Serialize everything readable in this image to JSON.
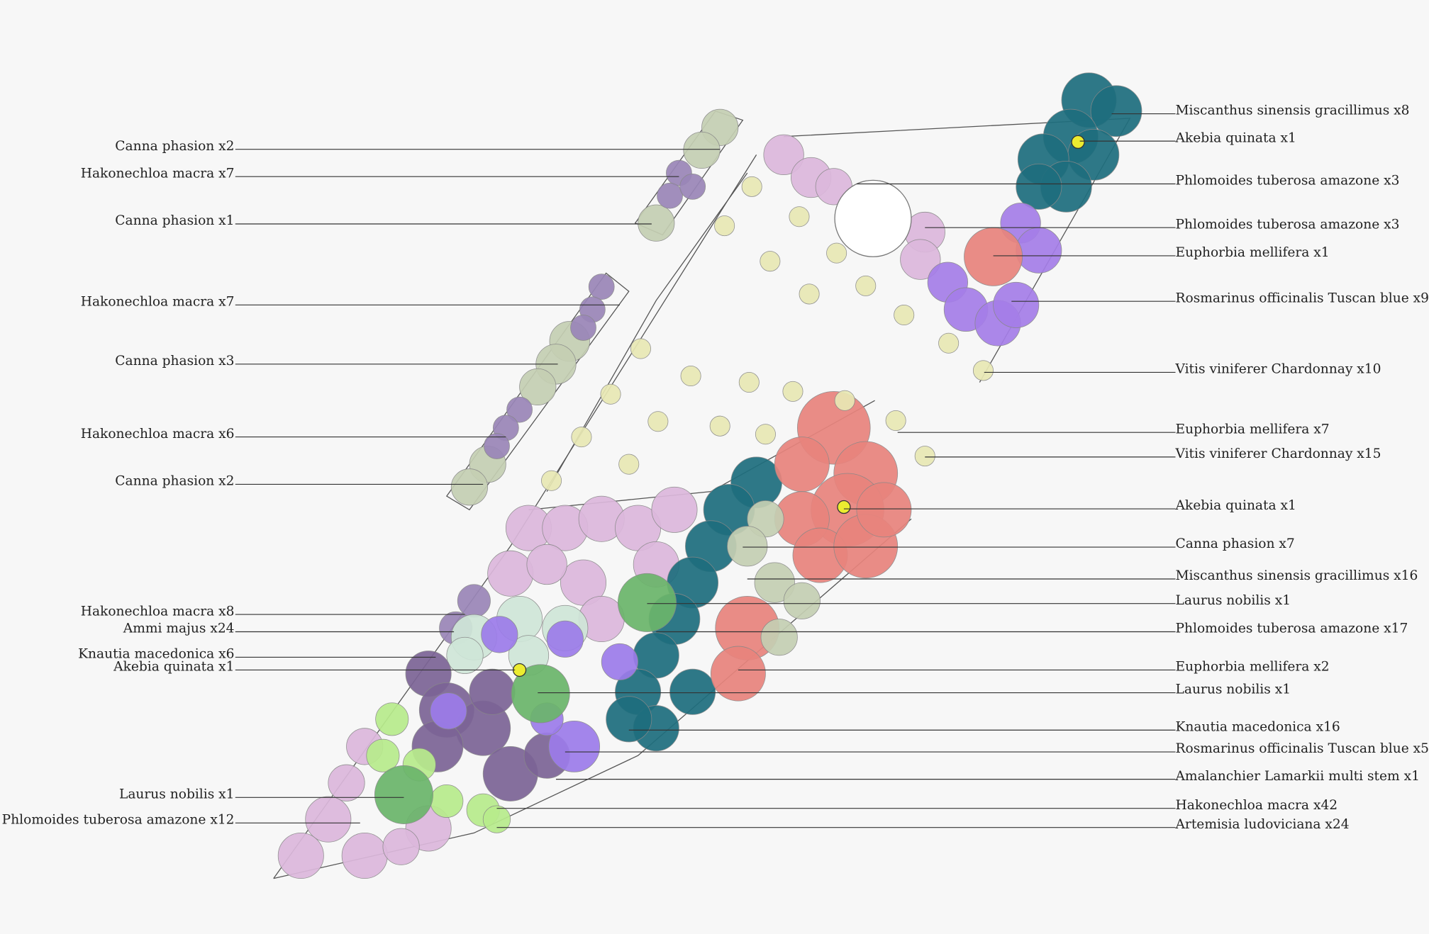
{
  "left_labels": [
    "Canna phasion x2",
    "Hakonechloa macra x7",
    "Canna phasion x1",
    "Hakonechloa macra x7",
    "Canna phasion x3",
    "Hakonechloa macra x6",
    "Canna phasion x2",
    "Hakonechloa macra x8",
    "Ammi majus x24",
    "Knautia macedonica x6",
    "Akebia quinata x1",
    "Laurus nobilis x1",
    "Phlomoides tuberosa amazone x12"
  ],
  "right_labels": [
    "Miscanthus sinensis gracillimus x8",
    "Akebia quinata x1",
    "Phlomoides tuberosa amazone x3",
    "Phlomoides tuberosa amazone x3",
    "Euphorbia mellifera x1",
    "Rosmarinus officinalis Tuscan blue x9",
    "Vitis viniferer Chardonnay x10",
    "Euphorbia mellifera x7",
    "Vitis viniferer Chardonnay x15",
    "Akebia quinata x1",
    "Canna phasion x7",
    "Miscanthus sinensis gracillimus x16",
    "Laurus nobilis x1",
    "Phlomoides tuberosa amazone x17",
    "Euphorbia mellifera x2",
    "Laurus nobilis x1",
    "Knautia macedonica x16",
    "Rosmarinus officinalis Tuscan blue x5",
    "Amalanchier Lamarkii multi stem x1",
    "Hakonechloa macra x42",
    "Artemisia ludoviciana x24"
  ]
}
